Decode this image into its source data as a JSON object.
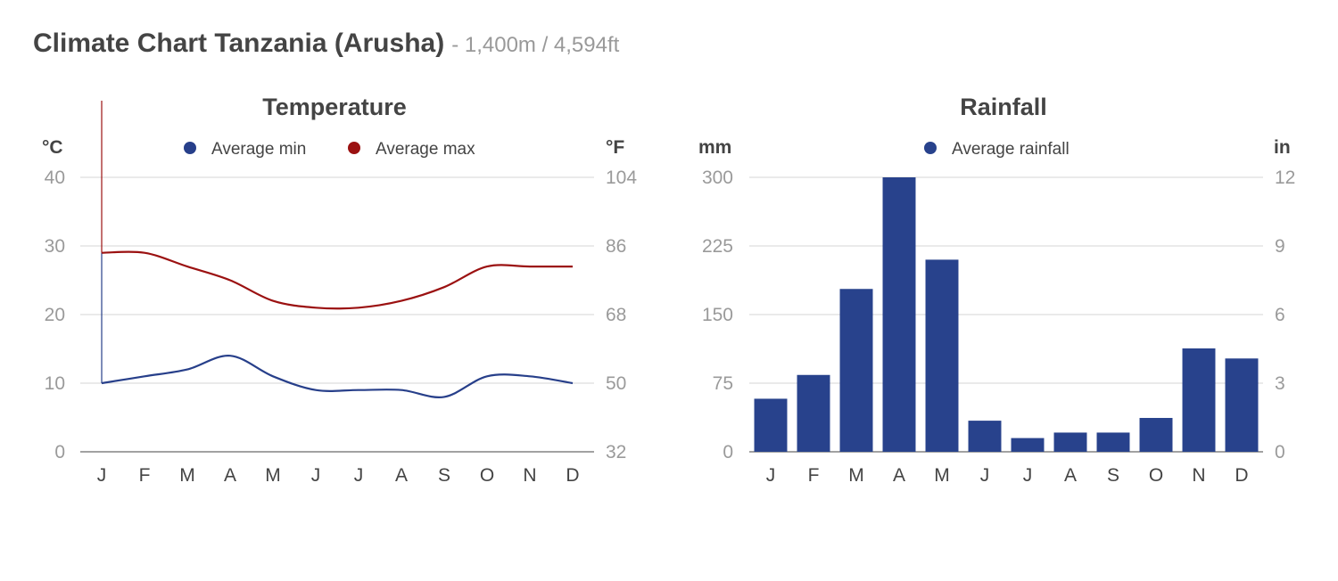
{
  "header": {
    "title": "Climate Chart Tanzania (Arusha)",
    "subtitle": "- 1,400m / 4,594ft"
  },
  "colors": {
    "min": "#273f8a",
    "max": "#9b1111",
    "rain": "#28428c",
    "grid": "#d4d4d4",
    "axis": "#444444"
  },
  "chart_data": [
    {
      "type": "line",
      "title": "Temperature",
      "ylabel": "°C",
      "ylabel_right": "°F",
      "categories": [
        "J",
        "F",
        "M",
        "A",
        "M",
        "J",
        "J",
        "A",
        "S",
        "O",
        "N",
        "D"
      ],
      "ylim": [
        0,
        40
      ],
      "yticks": [
        "0",
        "10",
        "20",
        "30",
        "40"
      ],
      "yticks_right": [
        "32",
        "50",
        "68",
        "86",
        "104"
      ],
      "legend_position": "top-center",
      "grid": true,
      "series": [
        {
          "name": "Average min",
          "color": "#273f8a",
          "values": [
            10,
            11,
            12,
            14,
            11,
            9,
            9,
            9,
            8,
            11,
            11,
            10
          ]
        },
        {
          "name": "Average max",
          "color": "#9b1111",
          "values": [
            29,
            29,
            27,
            25,
            22,
            21,
            21,
            22,
            24,
            27,
            27,
            27
          ]
        }
      ]
    },
    {
      "type": "bar",
      "title": "Rainfall",
      "ylabel": "mm",
      "ylabel_right": "in",
      "categories": [
        "J",
        "F",
        "M",
        "A",
        "M",
        "J",
        "J",
        "A",
        "S",
        "O",
        "N",
        "D"
      ],
      "ylim": [
        0,
        300
      ],
      "yticks": [
        "0",
        "75",
        "150",
        "225",
        "300"
      ],
      "yticks_right": [
        "0",
        "3",
        "6",
        "9",
        "12"
      ],
      "legend_position": "top-center",
      "grid": true,
      "series": [
        {
          "name": "Average rainfall",
          "color": "#28428c",
          "values": [
            58,
            84,
            178,
            300,
            210,
            34,
            15,
            21,
            21,
            37,
            113,
            102
          ]
        }
      ]
    }
  ]
}
